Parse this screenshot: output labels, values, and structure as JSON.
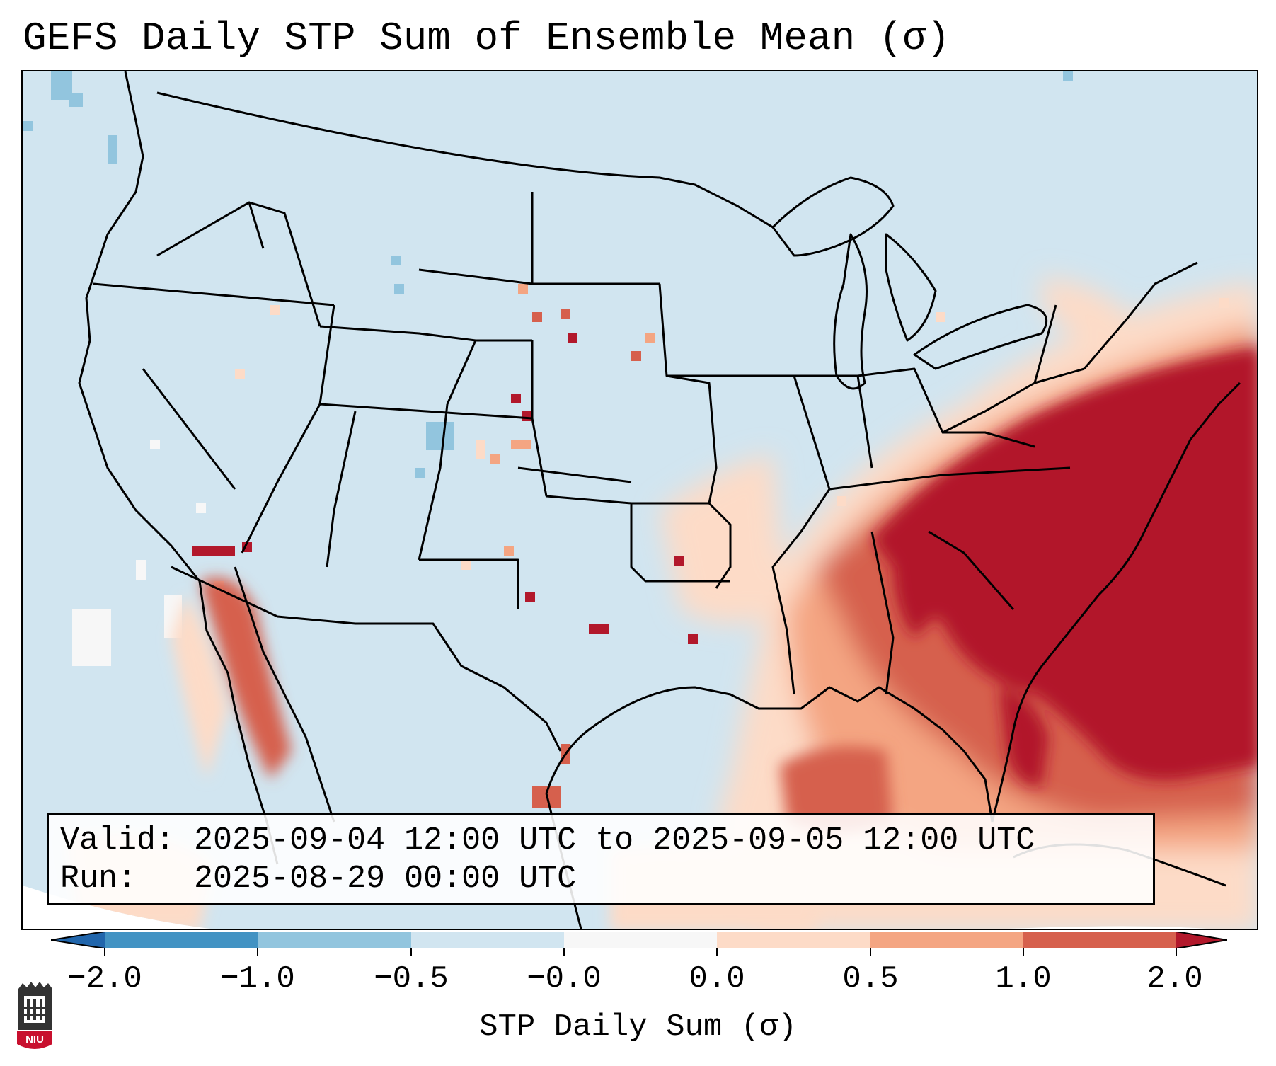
{
  "title": "GEFS Daily STP Sum of Ensemble Mean (σ)",
  "valid_box": {
    "valid_label": "Valid:",
    "valid_value": "2025-09-04 12:00 UTC to 2025-09-05 12:00 UTC",
    "run_label": "Run:",
    "run_value": "2025-08-29 00:00 UTC"
  },
  "colorbar": {
    "label": "STP Daily Sum (σ)",
    "tick_labels": [
      "−2.0",
      "−1.0",
      "−0.5",
      "−0.0",
      "0.0",
      "0.5",
      "1.0",
      "2.0"
    ],
    "bins": [
      {
        "range": "< -2.0",
        "color": "#2166ac"
      },
      {
        "range": "-2.0 to -1.0",
        "color": "#4393c3"
      },
      {
        "range": "-1.0 to -0.5",
        "color": "#92c5de"
      },
      {
        "range": "-0.5 to -0.0",
        "color": "#d1e5f0"
      },
      {
        "range": "-0.0 to 0.0",
        "color": "#f7f7f7"
      },
      {
        "range": "0.0 to 0.5",
        "color": "#fddbc7"
      },
      {
        "range": "0.5 to 1.0",
        "color": "#f4a582"
      },
      {
        "range": "1.0 to 2.0",
        "color": "#d6604d"
      },
      {
        "range": "> 2.0",
        "color": "#b2182b"
      }
    ]
  },
  "map": {
    "region": "Contiguous United States",
    "features": [
      "state boundaries",
      "country boundaries",
      "coastlines"
    ],
    "background_level_color": "#d1e5f0",
    "hotspots": [
      {
        "area": "Southeast US / Mid-Atlantic / western Atlantic",
        "level": "> 2.0"
      },
      {
        "area": "Gulf of Mexico coast / Florida",
        "level": "1.0 to 2.0"
      },
      {
        "area": "Tennessee & Ohio valleys",
        "level": "0.5 to 1.0"
      },
      {
        "area": "Colorado / New Mexico",
        "level": "0.0 to 0.5"
      },
      {
        "area": "Baja California / Sonora",
        "level": "1.0 to 2.0"
      }
    ]
  },
  "logo": {
    "text": "NIU"
  }
}
